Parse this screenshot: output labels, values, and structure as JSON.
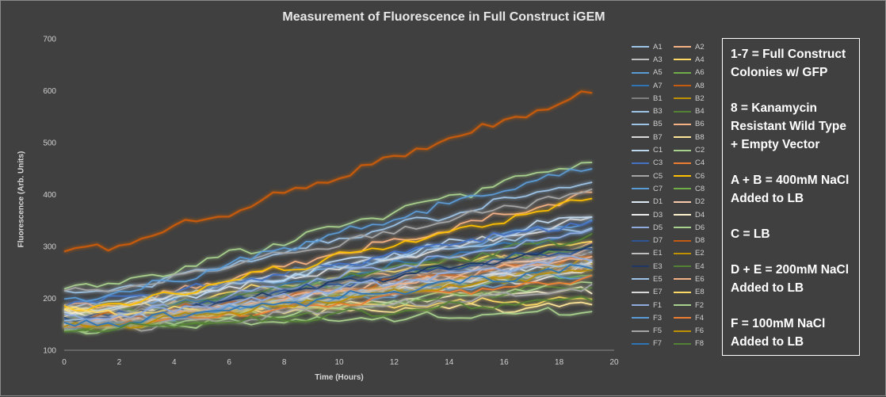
{
  "chart_data": {
    "type": "line",
    "title": "Measurement of Fluorescence in Full Construct iGEM",
    "xlabel": "Time (Hours)",
    "ylabel": "Fluorescence (Arb. Units)",
    "xlim": [
      0,
      20
    ],
    "ylim": [
      100,
      700
    ],
    "x_ticks": [
      0,
      2,
      4,
      6,
      8,
      10,
      12,
      14,
      16,
      18,
      20
    ],
    "y_ticks": [
      100,
      200,
      300,
      400,
      500,
      600,
      700
    ],
    "grid": false,
    "legend_position": "right",
    "x_start": 0,
    "x_end": 19.2,
    "x_step": 0.4,
    "series": [
      {
        "name": "A1",
        "color": "#9dc3e6",
        "start": 170,
        "end": 290
      },
      {
        "name": "A2",
        "color": "#f4b183",
        "start": 165,
        "end": 300
      },
      {
        "name": "A3",
        "color": "#bfbfbf",
        "start": 160,
        "end": 280
      },
      {
        "name": "A4",
        "color": "#ffd966",
        "start": 175,
        "end": 310
      },
      {
        "name": "A5",
        "color": "#5b9bd5",
        "start": 180,
        "end": 350
      },
      {
        "name": "A6",
        "color": "#70ad47",
        "start": 160,
        "end": 300
      },
      {
        "name": "A7",
        "color": "#2e75b6",
        "start": 165,
        "end": 330
      },
      {
        "name": "A8",
        "color": "#c55a11",
        "start": 290,
        "end": 595
      },
      {
        "name": "B1",
        "color": "#7f7f7f",
        "start": 170,
        "end": 290
      },
      {
        "name": "B2",
        "color": "#bf9000",
        "start": 160,
        "end": 260
      },
      {
        "name": "B3",
        "color": "#9dc3e6",
        "start": 185,
        "end": 340
      },
      {
        "name": "B4",
        "color": "#548235",
        "start": 165,
        "end": 320
      },
      {
        "name": "B5",
        "color": "#9dc3e6",
        "start": 210,
        "end": 425
      },
      {
        "name": "B6",
        "color": "#f4b183",
        "start": 180,
        "end": 400
      },
      {
        "name": "B7",
        "color": "#d9d9d9",
        "start": 175,
        "end": 350
      },
      {
        "name": "B8",
        "color": "#ffe699",
        "start": 170,
        "end": 185
      },
      {
        "name": "C1",
        "color": "#bdd7ee",
        "start": 175,
        "end": 360
      },
      {
        "name": "C2",
        "color": "#a9d18e",
        "start": 220,
        "end": 465
      },
      {
        "name": "C3",
        "color": "#4472c4",
        "start": 190,
        "end": 350
      },
      {
        "name": "C4",
        "color": "#ed7d31",
        "start": 150,
        "end": 260
      },
      {
        "name": "C5",
        "color": "#a5a5a5",
        "start": 210,
        "end": 410
      },
      {
        "name": "C6",
        "color": "#ffc000",
        "start": 180,
        "end": 390
      },
      {
        "name": "C7",
        "color": "#5b9bd5",
        "start": 200,
        "end": 455
      },
      {
        "name": "C8",
        "color": "#70ad47",
        "start": 160,
        "end": 250
      },
      {
        "name": "D1",
        "color": "#deebf7",
        "start": 155,
        "end": 270
      },
      {
        "name": "D2",
        "color": "#f8cbad",
        "start": 150,
        "end": 290
      },
      {
        "name": "D3",
        "color": "#ededed",
        "start": 150,
        "end": 250
      },
      {
        "name": "D4",
        "color": "#fff2cc",
        "start": 165,
        "end": 215
      },
      {
        "name": "D5",
        "color": "#8faadc",
        "start": 160,
        "end": 330
      },
      {
        "name": "D6",
        "color": "#a9d18e",
        "start": 145,
        "end": 175
      },
      {
        "name": "D7",
        "color": "#2f5597",
        "start": 160,
        "end": 300
      },
      {
        "name": "D8",
        "color": "#c55a11",
        "start": 160,
        "end": 280
      },
      {
        "name": "E1",
        "color": "#bfbfbf",
        "start": 150,
        "end": 260
      },
      {
        "name": "E2",
        "color": "#bf9000",
        "start": 145,
        "end": 270
      },
      {
        "name": "E3",
        "color": "#1f3864",
        "start": 160,
        "end": 300
      },
      {
        "name": "E4",
        "color": "#548235",
        "start": 140,
        "end": 230
      },
      {
        "name": "E5",
        "color": "#9dc3e6",
        "start": 155,
        "end": 270
      },
      {
        "name": "E6",
        "color": "#f4b183",
        "start": 150,
        "end": 280
      },
      {
        "name": "E7",
        "color": "#d9d9d9",
        "start": 145,
        "end": 260
      },
      {
        "name": "E8",
        "color": "#ffd966",
        "start": 175,
        "end": 195
      },
      {
        "name": "F1",
        "color": "#8faadc",
        "start": 160,
        "end": 280
      },
      {
        "name": "F2",
        "color": "#a9d18e",
        "start": 140,
        "end": 230
      },
      {
        "name": "F3",
        "color": "#5b9bd5",
        "start": 150,
        "end": 250
      },
      {
        "name": "F4",
        "color": "#ed7d31",
        "start": 145,
        "end": 240
      },
      {
        "name": "F5",
        "color": "#a5a5a5",
        "start": 140,
        "end": 220
      },
      {
        "name": "F6",
        "color": "#bf9000",
        "start": 145,
        "end": 255
      },
      {
        "name": "F7",
        "color": "#2e75b6",
        "start": 150,
        "end": 260
      },
      {
        "name": "F8",
        "color": "#548235",
        "start": 140,
        "end": 200
      }
    ]
  },
  "notes": [
    "1-7 = Full Construct",
    "Colonies w/ GFP",
    "8 = Kanamycin",
    "Resistant Wild Type",
    "+ Empty Vector",
    "A + B = 400mM NaCl",
    "Added to LB",
    "C = LB",
    "D + E = 200mM NaCl",
    "Added to LB",
    "F = 100mM NaCl",
    "Added to LB"
  ]
}
